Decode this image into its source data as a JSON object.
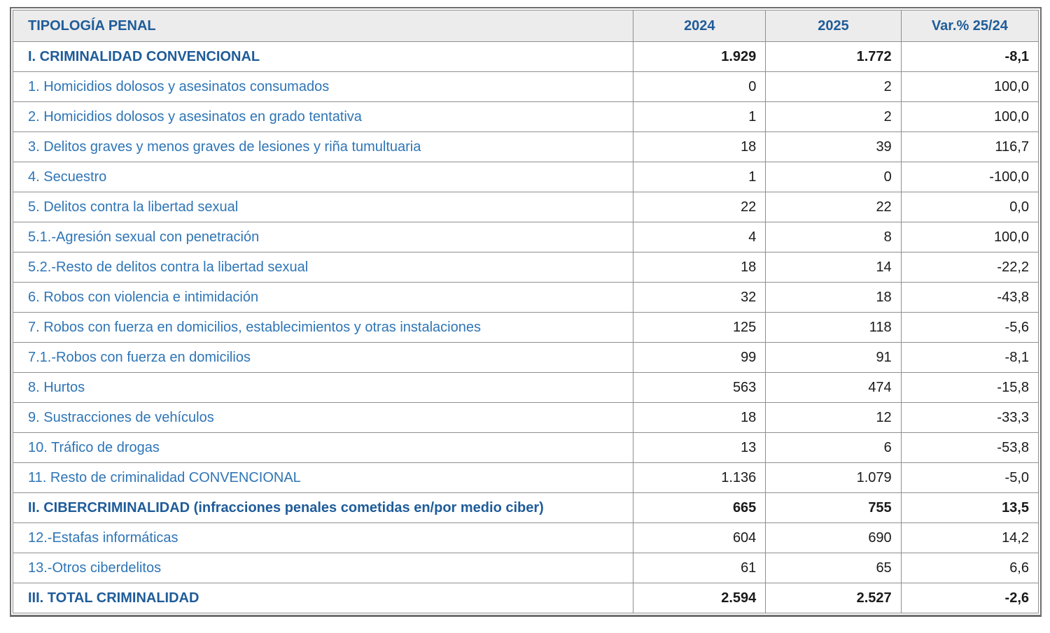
{
  "colors": {
    "header_background": "#ececec",
    "header_text_blue": "#1f5c99",
    "row_label_blue": "#2e75b6",
    "section_label_blue": "#1f5c99",
    "value_text": "#1a1a1a",
    "grid_border": "#8f8f8f",
    "outer_frame": "#6e6e6e"
  },
  "chart_data": {
    "type": "table",
    "columns": [
      "TIPOLOGÍA PENAL",
      "2024",
      "2025",
      "Var.% 25/24"
    ],
    "rows": [
      {
        "label": "I. CRIMINALIDAD CONVENCIONAL",
        "v2024": "1.929",
        "v2025": "1.772",
        "variation": "-8,1",
        "bold": true
      },
      {
        "label": "1. Homicidios dolosos y asesinatos consumados",
        "v2024": "0",
        "v2025": "2",
        "variation": "100,0",
        "bold": false
      },
      {
        "label": "2. Homicidios dolosos y asesinatos en grado tentativa",
        "v2024": "1",
        "v2025": "2",
        "variation": "100,0",
        "bold": false
      },
      {
        "label": "3. Delitos graves y menos graves de lesiones y riña tumultuaria",
        "v2024": "18",
        "v2025": "39",
        "variation": "116,7",
        "bold": false
      },
      {
        "label": "4. Secuestro",
        "v2024": "1",
        "v2025": "0",
        "variation": "-100,0",
        "bold": false
      },
      {
        "label": "5. Delitos contra la libertad sexual",
        "v2024": "22",
        "v2025": "22",
        "variation": "0,0",
        "bold": false
      },
      {
        "label": "5.1.-Agresión sexual con penetración",
        "v2024": "4",
        "v2025": "8",
        "variation": "100,0",
        "bold": false
      },
      {
        "label": "5.2.-Resto de delitos contra la libertad sexual",
        "v2024": "18",
        "v2025": "14",
        "variation": "-22,2",
        "bold": false
      },
      {
        "label": "6. Robos con violencia e intimidación",
        "v2024": "32",
        "v2025": "18",
        "variation": "-43,8",
        "bold": false
      },
      {
        "label": "7. Robos con fuerza en domicilios, establecimientos y otras instalaciones",
        "v2024": "125",
        "v2025": "118",
        "variation": "-5,6",
        "bold": false
      },
      {
        "label": "7.1.-Robos con fuerza en domicilios",
        "v2024": "99",
        "v2025": "91",
        "variation": "-8,1",
        "bold": false
      },
      {
        "label": "8. Hurtos",
        "v2024": "563",
        "v2025": "474",
        "variation": "-15,8",
        "bold": false
      },
      {
        "label": "9. Sustracciones de vehículos",
        "v2024": "18",
        "v2025": "12",
        "variation": "-33,3",
        "bold": false
      },
      {
        "label": "10. Tráfico de drogas",
        "v2024": "13",
        "v2025": "6",
        "variation": "-53,8",
        "bold": false
      },
      {
        "label": "11. Resto de criminalidad CONVENCIONAL",
        "v2024": "1.136",
        "v2025": "1.079",
        "variation": "-5,0",
        "bold": false
      },
      {
        "label": "II. CIBERCRIMINALIDAD (infracciones penales cometidas en/por medio ciber)",
        "v2024": "665",
        "v2025": "755",
        "variation": "13,5",
        "bold": true
      },
      {
        "label": "12.-Estafas informáticas",
        "v2024": "604",
        "v2025": "690",
        "variation": "14,2",
        "bold": false
      },
      {
        "label": "13.-Otros ciberdelitos",
        "v2024": "61",
        "v2025": "65",
        "variation": "6,6",
        "bold": false
      },
      {
        "label": "III. TOTAL CRIMINALIDAD",
        "v2024": "2.594",
        "v2025": "2.527",
        "variation": "-2,6",
        "bold": true
      }
    ]
  }
}
